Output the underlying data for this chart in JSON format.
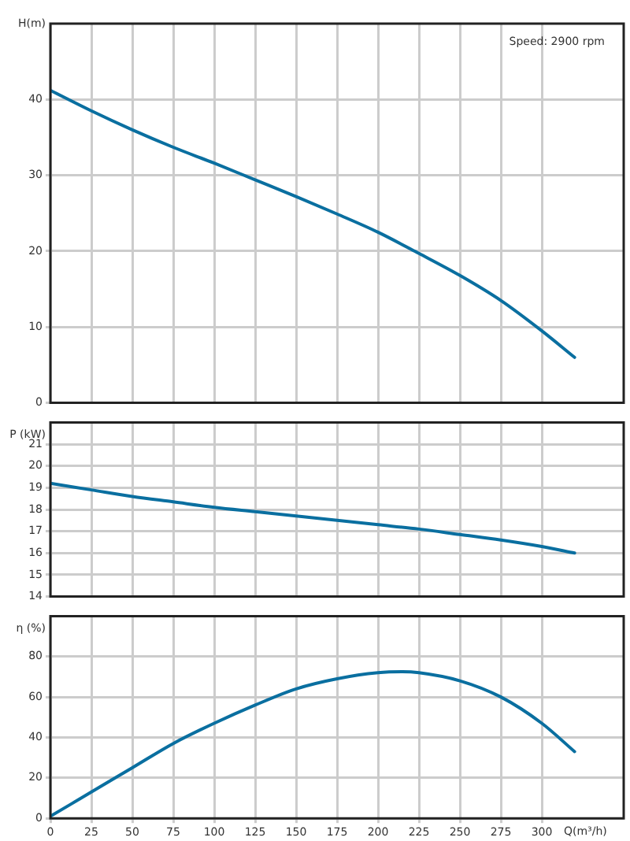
{
  "chart_data": [
    {
      "type": "line",
      "ylabel": "H(m)",
      "annotations": [
        "Speed: 2900 rpm"
      ],
      "x": [
        0,
        25,
        50,
        75,
        100,
        125,
        150,
        175,
        200,
        225,
        250,
        275,
        300,
        320
      ],
      "series": [
        {
          "color": "#0a6fa0",
          "values": [
            41.2,
            38.5,
            36,
            33.7,
            31.6,
            29.4,
            27.2,
            24.9,
            22.5,
            19.7,
            16.8,
            13.5,
            9.5,
            6
          ]
        }
      ],
      "xlim": [
        0,
        350
      ],
      "xticks": [
        0,
        25,
        50,
        75,
        100,
        125,
        150,
        175,
        200,
        225,
        250,
        275,
        300
      ],
      "ylim": [
        0,
        50
      ],
      "yticks": [
        0,
        10,
        20,
        30,
        40
      ],
      "grid": true,
      "tick_labels": "y",
      "marker": "none",
      "line_style": "solid"
    },
    {
      "type": "line",
      "ylabel": "P (kW)",
      "x": [
        0,
        25,
        50,
        75,
        100,
        125,
        150,
        175,
        200,
        225,
        250,
        275,
        300,
        320
      ],
      "series": [
        {
          "color": "#0a6fa0",
          "values": [
            19.2,
            18.9,
            18.6,
            18.35,
            18.1,
            17.9,
            17.7,
            17.5,
            17.3,
            17.1,
            16.85,
            16.6,
            16.3,
            16
          ]
        }
      ],
      "xlim": [
        0,
        350
      ],
      "xticks": [
        0,
        25,
        50,
        75,
        100,
        125,
        150,
        175,
        200,
        225,
        250,
        275,
        300
      ],
      "ylim": [
        14,
        22
      ],
      "yticks": [
        14,
        15,
        16,
        17,
        18,
        19,
        20,
        21
      ],
      "grid": true,
      "tick_labels": "y",
      "marker": "none",
      "line_style": "solid"
    },
    {
      "type": "line",
      "ylabel": "η (%)",
      "xlabel": "Q(m³/h)",
      "x": [
        0,
        25,
        50,
        75,
        100,
        125,
        150,
        175,
        200,
        215,
        225,
        250,
        275,
        300,
        320
      ],
      "series": [
        {
          "color": "#0a6fa0",
          "values": [
            1,
            13,
            25,
            37,
            47,
            56,
            64,
            69,
            72,
            72.5,
            72,
            68,
            60,
            47,
            33
          ]
        }
      ],
      "xlim": [
        0,
        350
      ],
      "xticks": [
        0,
        25,
        50,
        75,
        100,
        125,
        150,
        175,
        200,
        225,
        250,
        275,
        300
      ],
      "ylim": [
        0,
        100
      ],
      "yticks": [
        0,
        20,
        40,
        60,
        80
      ],
      "grid": true,
      "marker": "none",
      "line_style": "solid"
    }
  ]
}
